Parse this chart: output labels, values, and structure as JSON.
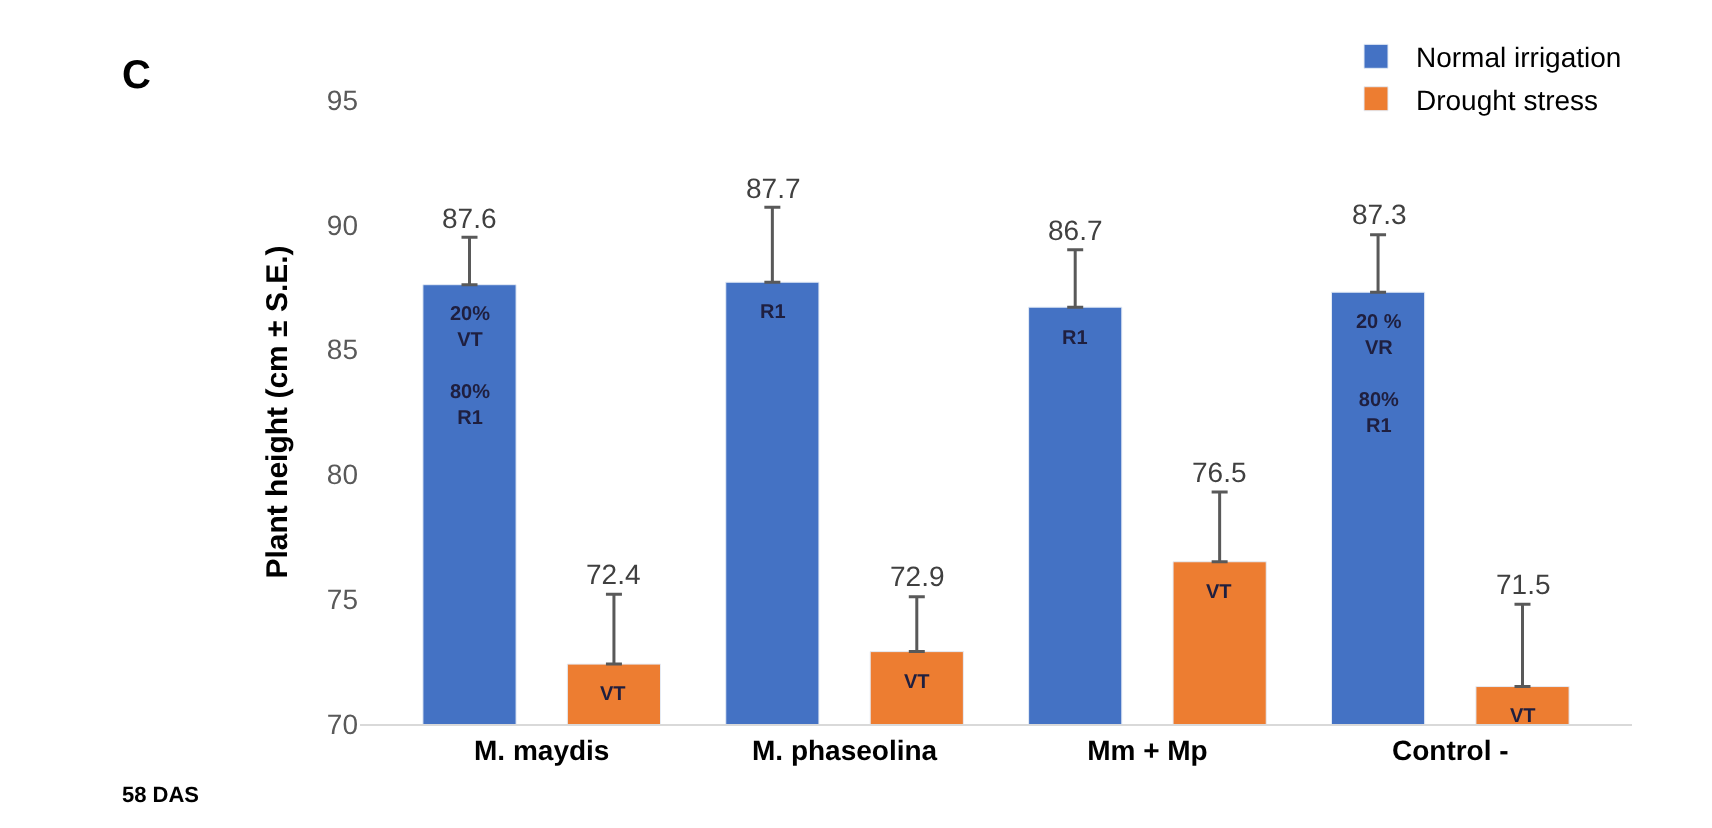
{
  "chart_data": {
    "type": "bar",
    "ylabel": "Plant height (cm ± S.E.)",
    "categories": [
      "M. maydis",
      "M. phaseolina",
      "Mm + Mp",
      "Control -"
    ],
    "series": [
      {
        "name": "Normal irrigation",
        "color": "#4472c4",
        "values": [
          87.6,
          87.7,
          86.7,
          87.3
        ],
        "errors": [
          1.9,
          3.0,
          2.3,
          2.3
        ]
      },
      {
        "name": "Drought stress",
        "color": "#ed7d31",
        "values": [
          72.4,
          72.9,
          76.5,
          71.5
        ],
        "errors": [
          2.8,
          2.2,
          2.8,
          3.3
        ]
      }
    ],
    "ylim": [
      70,
      95
    ],
    "yticks": [
      70,
      75,
      80,
      85,
      90,
      95
    ],
    "data_labels": true,
    "grid": false,
    "legend": "top right",
    "annotations": [
      "C",
      "58 DAS",
      "20%\nVT\n\n80%\nR1",
      "R1",
      "R1",
      "20 %\nVR\n\n80%\nR1",
      "VT",
      "VT",
      "VT",
      "VT"
    ]
  }
}
